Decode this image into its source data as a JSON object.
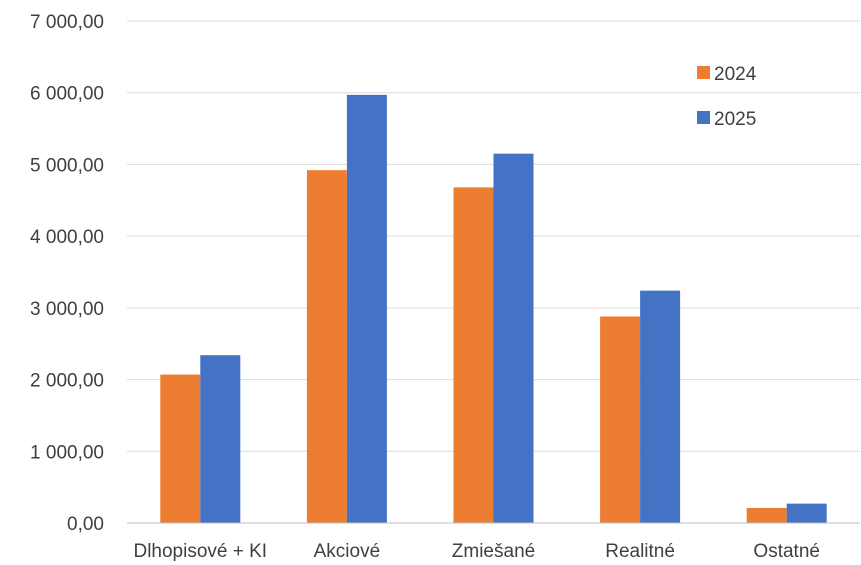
{
  "chart_data": {
    "type": "bar",
    "categories": [
      "Dlhopisové + KI",
      "Akciové",
      "Zmiešané",
      "Realitné",
      "Ostatné"
    ],
    "series": [
      {
        "name": "2024",
        "color": "#ed7d31",
        "values": [
          2070,
          4920,
          4680,
          2880,
          210
        ]
      },
      {
        "name": "2025",
        "color": "#4472c4",
        "values": [
          2340,
          5970,
          5150,
          3240,
          270
        ]
      }
    ],
    "ylim": [
      0,
      7000
    ],
    "yticks": [
      0,
      1000,
      2000,
      3000,
      4000,
      5000,
      6000,
      7000
    ],
    "ytick_labels": [
      "0,00",
      "1 000,00",
      "2 000,00",
      "3 000,00",
      "4 000,00",
      "5 000,00",
      "6 000,00",
      "7 000,00"
    ],
    "grid": true,
    "legend_position": "top-right",
    "title": "",
    "xlabel": "",
    "ylabel": ""
  }
}
